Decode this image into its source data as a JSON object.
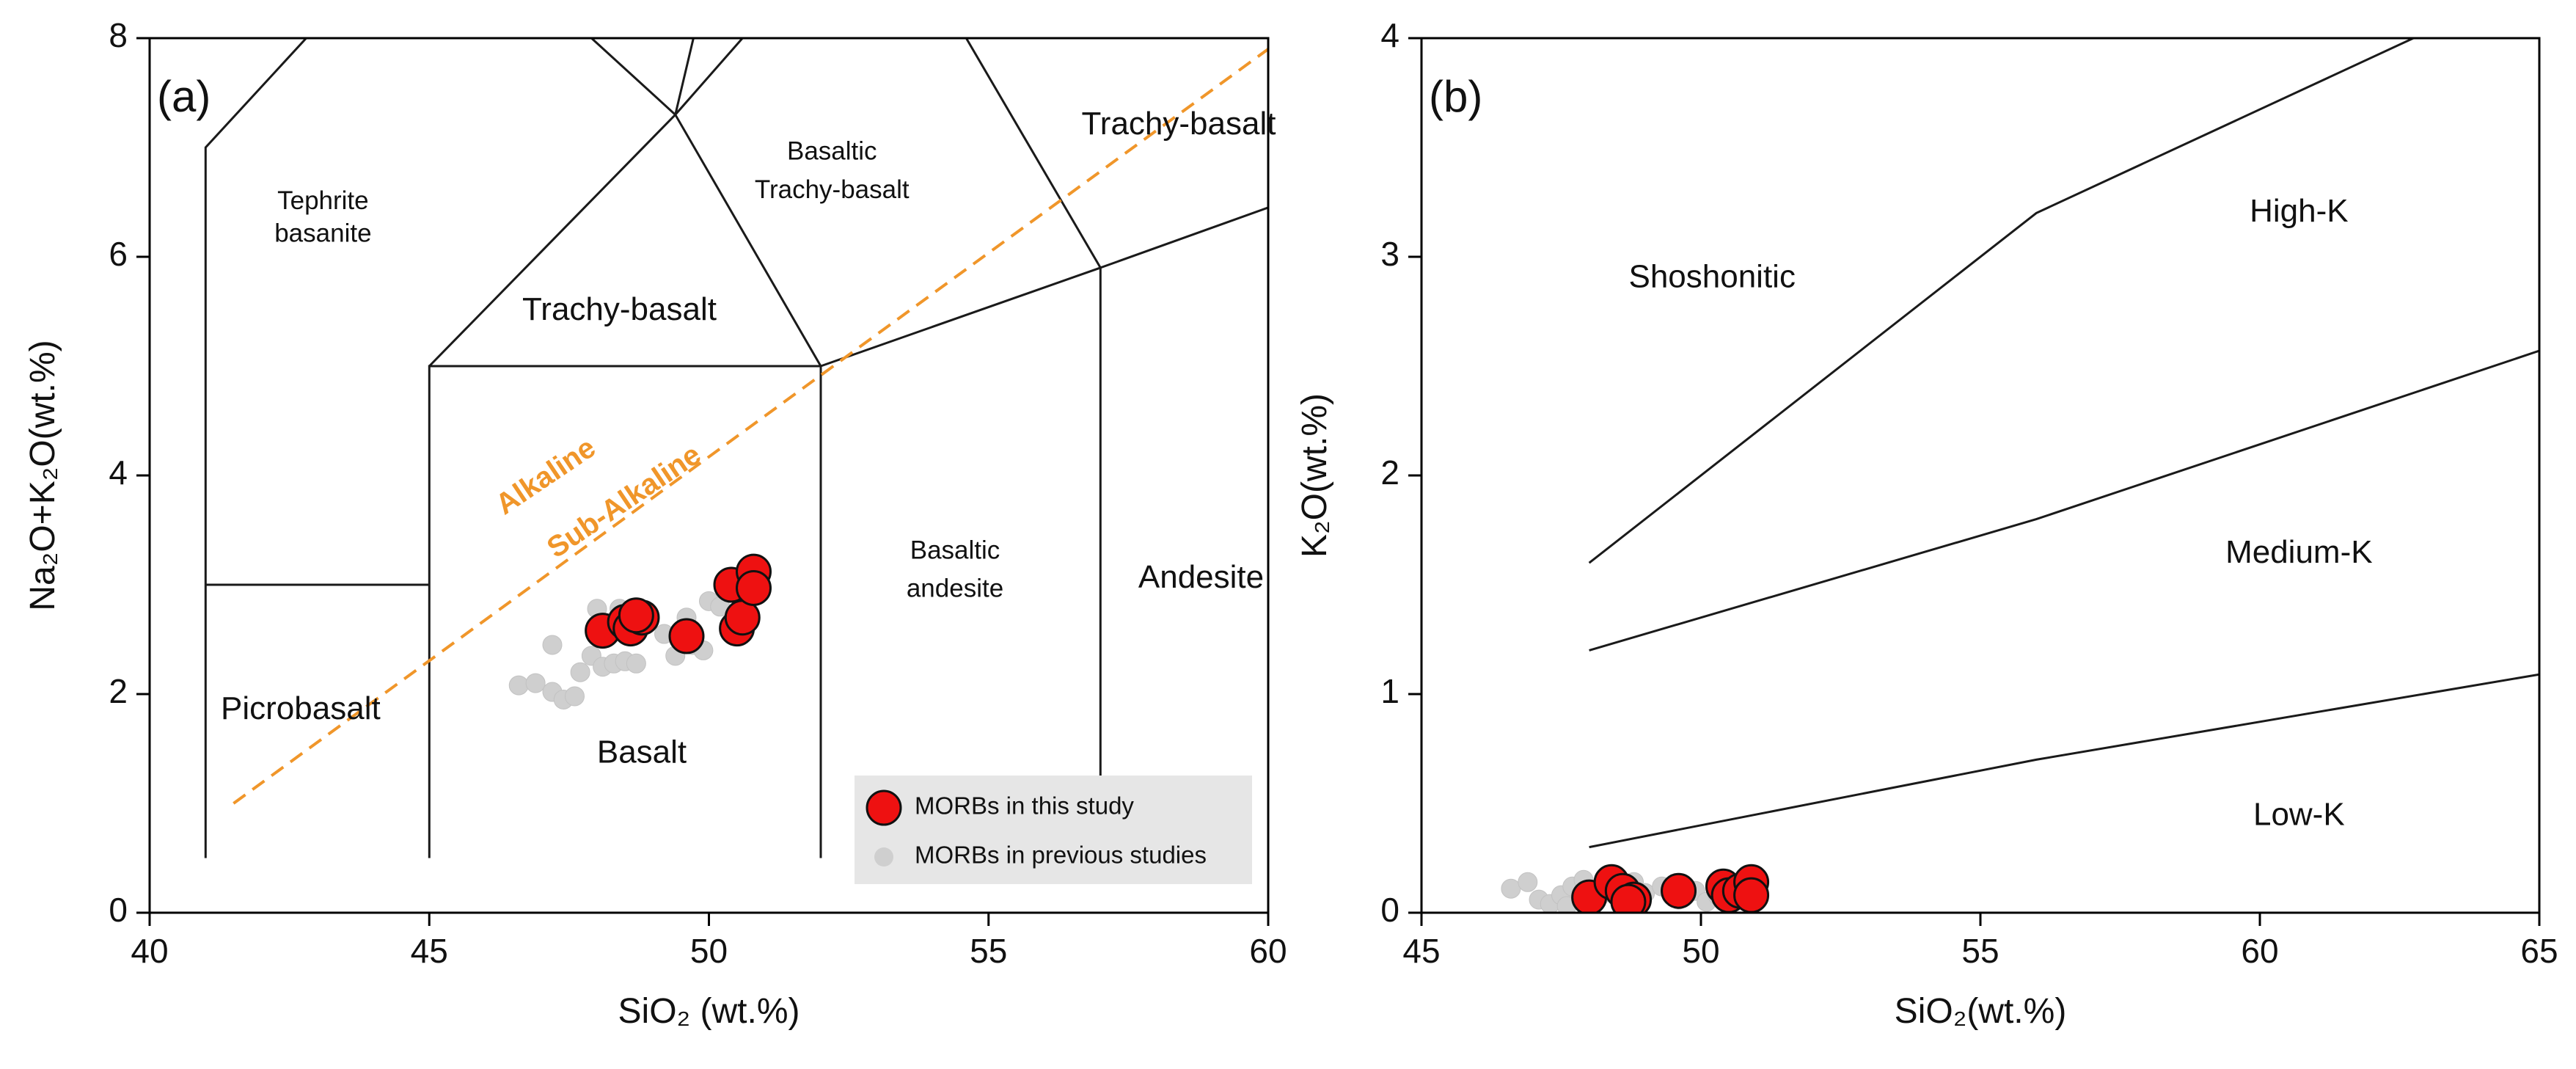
{
  "colors": {
    "axis": "#000000",
    "boundary": "#1a1a1a",
    "alkaline_line": "#f0962a",
    "this_study_fill": "#ee1111",
    "this_study_stroke": "#111111",
    "previous_fill": "#cfcfcf",
    "legend_bg": "#e6e6e6"
  },
  "chart_data": [
    {
      "type": "scatter",
      "panel_label": "(a)",
      "xlabel": "SiO₂ (wt.%)",
      "ylabel": "Na₂O+K₂O(wt.%)",
      "xlim": [
        40,
        60
      ],
      "ylim": [
        0,
        8
      ],
      "x_ticks": [
        "40",
        "45",
        "50",
        "55",
        "60"
      ],
      "y_ticks": [
        "0",
        "2",
        "4",
        "6",
        "8"
      ],
      "grid": false,
      "legend_position": "bottom-right",
      "legend": [
        "MORBs in this study",
        "MORBs in previous studies"
      ],
      "boundaries": [
        [
          [
            41,
            0.5
          ],
          [
            41,
            7.0
          ],
          [
            42.8,
            8.0
          ]
        ],
        [
          [
            41,
            3.0
          ],
          [
            45,
            3.0
          ]
        ],
        [
          [
            45,
            0.5
          ],
          [
            45,
            5.0
          ],
          [
            52,
            5.0
          ],
          [
            52,
            0.5
          ]
        ],
        [
          [
            45,
            5.0
          ],
          [
            49.4,
            7.3
          ],
          [
            52,
            5.0
          ]
        ],
        [
          [
            47.9,
            8.0
          ],
          [
            49.4,
            7.3
          ],
          [
            50.6,
            8.0
          ]
        ],
        [
          [
            49.4,
            7.3
          ],
          [
            52.5,
            14.0
          ]
        ],
        [
          [
            52,
            5.0
          ],
          [
            57,
            5.9
          ],
          [
            57,
            0.5
          ]
        ],
        [
          [
            57,
            5.9
          ],
          [
            60,
            6.45
          ]
        ],
        [
          [
            57,
            5.9
          ],
          [
            54.6,
            8.0
          ]
        ]
      ],
      "alkaline_divider": [
        [
          41.5,
          1.0
        ],
        [
          60,
          7.9
        ]
      ],
      "field_labels": [
        {
          "text": "Tephrite",
          "x": 43.1,
          "y": 6.5
        },
        {
          "text": "basanite",
          "x": 43.1,
          "y": 6.2
        },
        {
          "text": "Trachy-basalt",
          "x": 48.4,
          "y": 5.5
        },
        {
          "text": "Basaltic",
          "x": 52.2,
          "y": 6.95
        },
        {
          "text": "Trachy-basalt",
          "x": 52.2,
          "y": 6.6
        },
        {
          "text": "Trachy-basalt",
          "x": 58.4,
          "y": 7.2
        },
        {
          "text": "Picrobasalt",
          "x": 42.7,
          "y": 1.85
        },
        {
          "text": "Basalt",
          "x": 48.8,
          "y": 1.45
        },
        {
          "text": "Basaltic",
          "x": 54.4,
          "y": 3.3
        },
        {
          "text": "andesite",
          "x": 54.4,
          "y": 2.95
        },
        {
          "text": "Andesite",
          "x": 58.8,
          "y": 3.05
        }
      ],
      "alkaline_labels": [
        {
          "text": "Alkaline",
          "x": 47.1,
          "y": 3.98,
          "angle": -34
        },
        {
          "text": "Sub-Alkaline",
          "x": 48.5,
          "y": 3.75,
          "angle": -34
        }
      ],
      "series": [
        {
          "name": "MORBs in previous studies",
          "points": [
            [
              46.6,
              2.08
            ],
            [
              46.9,
              2.1
            ],
            [
              47.2,
              2.02
            ],
            [
              47.4,
              1.95
            ],
            [
              47.6,
              1.98
            ],
            [
              47.7,
              2.2
            ],
            [
              47.9,
              2.35
            ],
            [
              48.1,
              2.25
            ],
            [
              48.3,
              2.28
            ],
            [
              48.5,
              2.3
            ],
            [
              48.7,
              2.28
            ],
            [
              47.2,
              2.45
            ],
            [
              48.0,
              2.78
            ],
            [
              48.3,
              2.6
            ],
            [
              48.6,
              2.55
            ],
            [
              48.9,
              2.65
            ],
            [
              49.2,
              2.55
            ],
            [
              49.4,
              2.35
            ],
            [
              49.7,
              2.45
            ],
            [
              49.9,
              2.4
            ],
            [
              50.0,
              2.85
            ],
            [
              50.2,
              2.8
            ],
            [
              50.4,
              2.65
            ],
            [
              49.6,
              2.7
            ],
            [
              48.4,
              2.78
            ]
          ]
        },
        {
          "name": "MORBs in this study",
          "points": [
            [
              48.1,
              2.58
            ],
            [
              48.5,
              2.66
            ],
            [
              48.6,
              2.6
            ],
            [
              48.8,
              2.7
            ],
            [
              48.7,
              2.72
            ],
            [
              49.6,
              2.53
            ],
            [
              50.4,
              3.0
            ],
            [
              50.5,
              2.6
            ],
            [
              50.6,
              2.7
            ],
            [
              50.8,
              3.12
            ],
            [
              50.8,
              2.97
            ]
          ]
        }
      ]
    },
    {
      "type": "scatter",
      "panel_label": "(b)",
      "xlabel": "SiO₂(wt.%)",
      "ylabel": "K₂O(wt.%)",
      "xlim": [
        45,
        65
      ],
      "ylim": [
        0,
        4
      ],
      "x_ticks": [
        "45",
        "50",
        "55",
        "60",
        "65"
      ],
      "y_ticks": [
        "0",
        "1",
        "2",
        "3",
        "4"
      ],
      "grid": false,
      "boundaries": [
        [
          [
            48,
            1.6
          ],
          [
            56,
            3.2
          ],
          [
            63,
            4.03
          ]
        ],
        [
          [
            48,
            1.2
          ],
          [
            56,
            1.8
          ],
          [
            65,
            2.57
          ]
        ],
        [
          [
            48,
            0.3
          ],
          [
            56,
            0.7
          ],
          [
            65,
            1.09
          ]
        ]
      ],
      "field_labels": [
        {
          "text": "Shoshonitic",
          "x": 50.2,
          "y": 2.9
        },
        {
          "text": "High-K",
          "x": 60.7,
          "y": 3.2
        },
        {
          "text": "Medium-K",
          "x": 60.7,
          "y": 1.64
        },
        {
          "text": "Low-K",
          "x": 60.7,
          "y": 0.44
        }
      ],
      "series": [
        {
          "name": "MORBs in previous studies",
          "points": [
            [
              46.6,
              0.11
            ],
            [
              46.9,
              0.14
            ],
            [
              47.1,
              0.06
            ],
            [
              47.3,
              0.04
            ],
            [
              47.5,
              0.08
            ],
            [
              47.7,
              0.12
            ],
            [
              47.9,
              0.15
            ],
            [
              48.0,
              0.1
            ],
            [
              48.2,
              0.08
            ],
            [
              48.4,
              0.16
            ],
            [
              48.6,
              0.05
            ],
            [
              48.8,
              0.14
            ],
            [
              49.0,
              0.09
            ],
            [
              49.3,
              0.12
            ],
            [
              49.6,
              0.06
            ],
            [
              49.9,
              0.1
            ],
            [
              50.1,
              0.05
            ],
            [
              50.3,
              0.08
            ],
            [
              47.6,
              0.03
            ],
            [
              48.9,
              0.04
            ]
          ]
        },
        {
          "name": "MORBs in this study",
          "points": [
            [
              48.0,
              0.07
            ],
            [
              48.4,
              0.14
            ],
            [
              48.6,
              0.1
            ],
            [
              48.8,
              0.06
            ],
            [
              48.7,
              0.05
            ],
            [
              49.6,
              0.1
            ],
            [
              50.4,
              0.12
            ],
            [
              50.5,
              0.08
            ],
            [
              50.7,
              0.1
            ],
            [
              50.9,
              0.14
            ],
            [
              50.9,
              0.08
            ]
          ]
        }
      ]
    }
  ]
}
